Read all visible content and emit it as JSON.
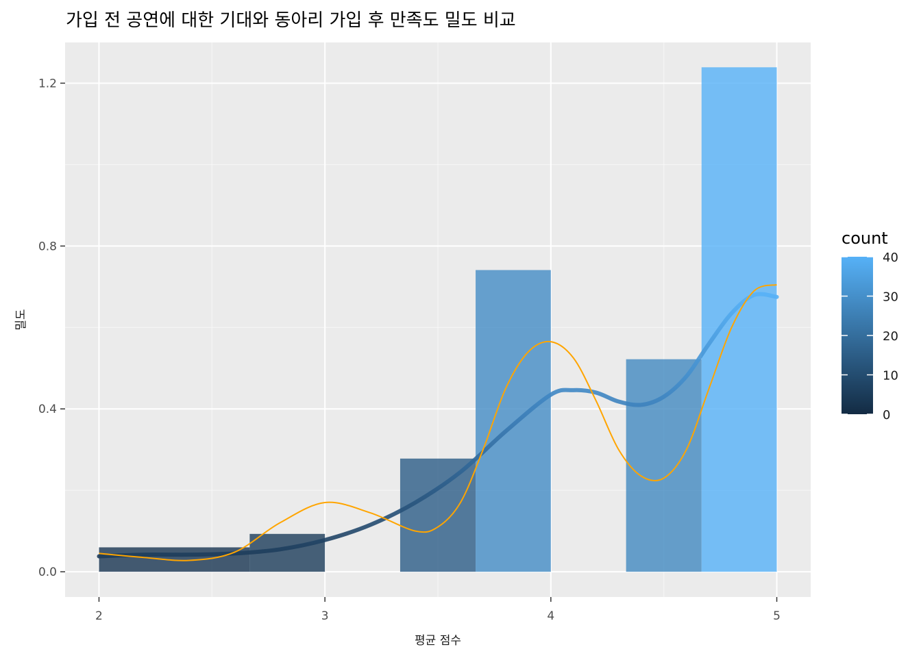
{
  "chart_data": {
    "type": "bar",
    "title": "가입 전 공연에 대한 기대와 동아리 가입 후 만족도 밀도 비교",
    "xlabel": "평균 점수",
    "ylabel": "밀도",
    "xlim": [
      1.85,
      5.15
    ],
    "ylim": [
      -0.062,
      1.3
    ],
    "x_ticks": [
      2,
      3,
      4,
      5
    ],
    "x_tick_labels": [
      "2",
      "3",
      "4",
      "5"
    ],
    "x_minor": [
      2.5,
      3.5,
      4.5
    ],
    "y_ticks": [
      0.0,
      0.4,
      0.8,
      1.2
    ],
    "y_tick_labels": [
      "0.0",
      "0.4",
      "0.8",
      "1.2"
    ],
    "y_minor": [
      0.2,
      0.6,
      1.0
    ],
    "grid": true,
    "bin_width": 0.3333,
    "bars": [
      {
        "xmin": 2.0,
        "xmax": 2.667,
        "density": 0.06,
        "count": 3
      },
      {
        "xmin": 2.667,
        "xmax": 3.0,
        "density": 0.093,
        "count": 5
      },
      {
        "xmin": 3.333,
        "xmax": 3.667,
        "density": 0.278,
        "count": 15
      },
      {
        "xmin": 3.667,
        "xmax": 4.0,
        "density": 0.741,
        "count": 29
      },
      {
        "xmin": 4.333,
        "xmax": 4.667,
        "density": 0.522,
        "count": 28
      },
      {
        "xmin": 4.667,
        "xmax": 5.0,
        "density": 1.239,
        "count": 40
      }
    ],
    "series": [
      {
        "kind": "density",
        "style": "thick-gradient",
        "x": [
          2.0,
          2.2,
          2.4,
          2.6,
          2.8,
          3.0,
          3.2,
          3.4,
          3.6,
          3.8,
          4.0,
          4.1,
          4.2,
          4.3,
          4.4,
          4.5,
          4.6,
          4.7,
          4.8,
          4.9,
          5.0
        ],
        "y": [
          0.038,
          0.042,
          0.042,
          0.045,
          0.055,
          0.078,
          0.115,
          0.17,
          0.245,
          0.345,
          0.435,
          0.446,
          0.44,
          0.418,
          0.41,
          0.43,
          0.48,
          0.56,
          0.635,
          0.68,
          0.675
        ]
      },
      {
        "kind": "density",
        "style": "thin-orange",
        "color": "#FFA500",
        "x": [
          2.0,
          2.2,
          2.4,
          2.6,
          2.8,
          3.0,
          3.2,
          3.4,
          3.5,
          3.6,
          3.7,
          3.8,
          3.9,
          4.0,
          4.1,
          4.2,
          4.3,
          4.4,
          4.5,
          4.6,
          4.7,
          4.8,
          4.9,
          5.0
        ],
        "y": [
          0.045,
          0.035,
          0.028,
          0.048,
          0.12,
          0.17,
          0.145,
          0.1,
          0.11,
          0.17,
          0.3,
          0.45,
          0.54,
          0.565,
          0.525,
          0.42,
          0.3,
          0.235,
          0.23,
          0.3,
          0.45,
          0.6,
          0.69,
          0.705
        ]
      }
    ],
    "fill_scale": {
      "title": "count",
      "min": 0,
      "max": 40,
      "low_color": "#132B43",
      "high_color": "#56B1F7",
      "bar_alpha": 0.8,
      "ticks": [
        0,
        10,
        20,
        30,
        40
      ],
      "tick_labels": [
        "0",
        "10",
        "20",
        "30",
        "40"
      ]
    },
    "legend_position": "right",
    "panel_background": "#EBEBEB",
    "grid_color": "#FFFFFF"
  }
}
